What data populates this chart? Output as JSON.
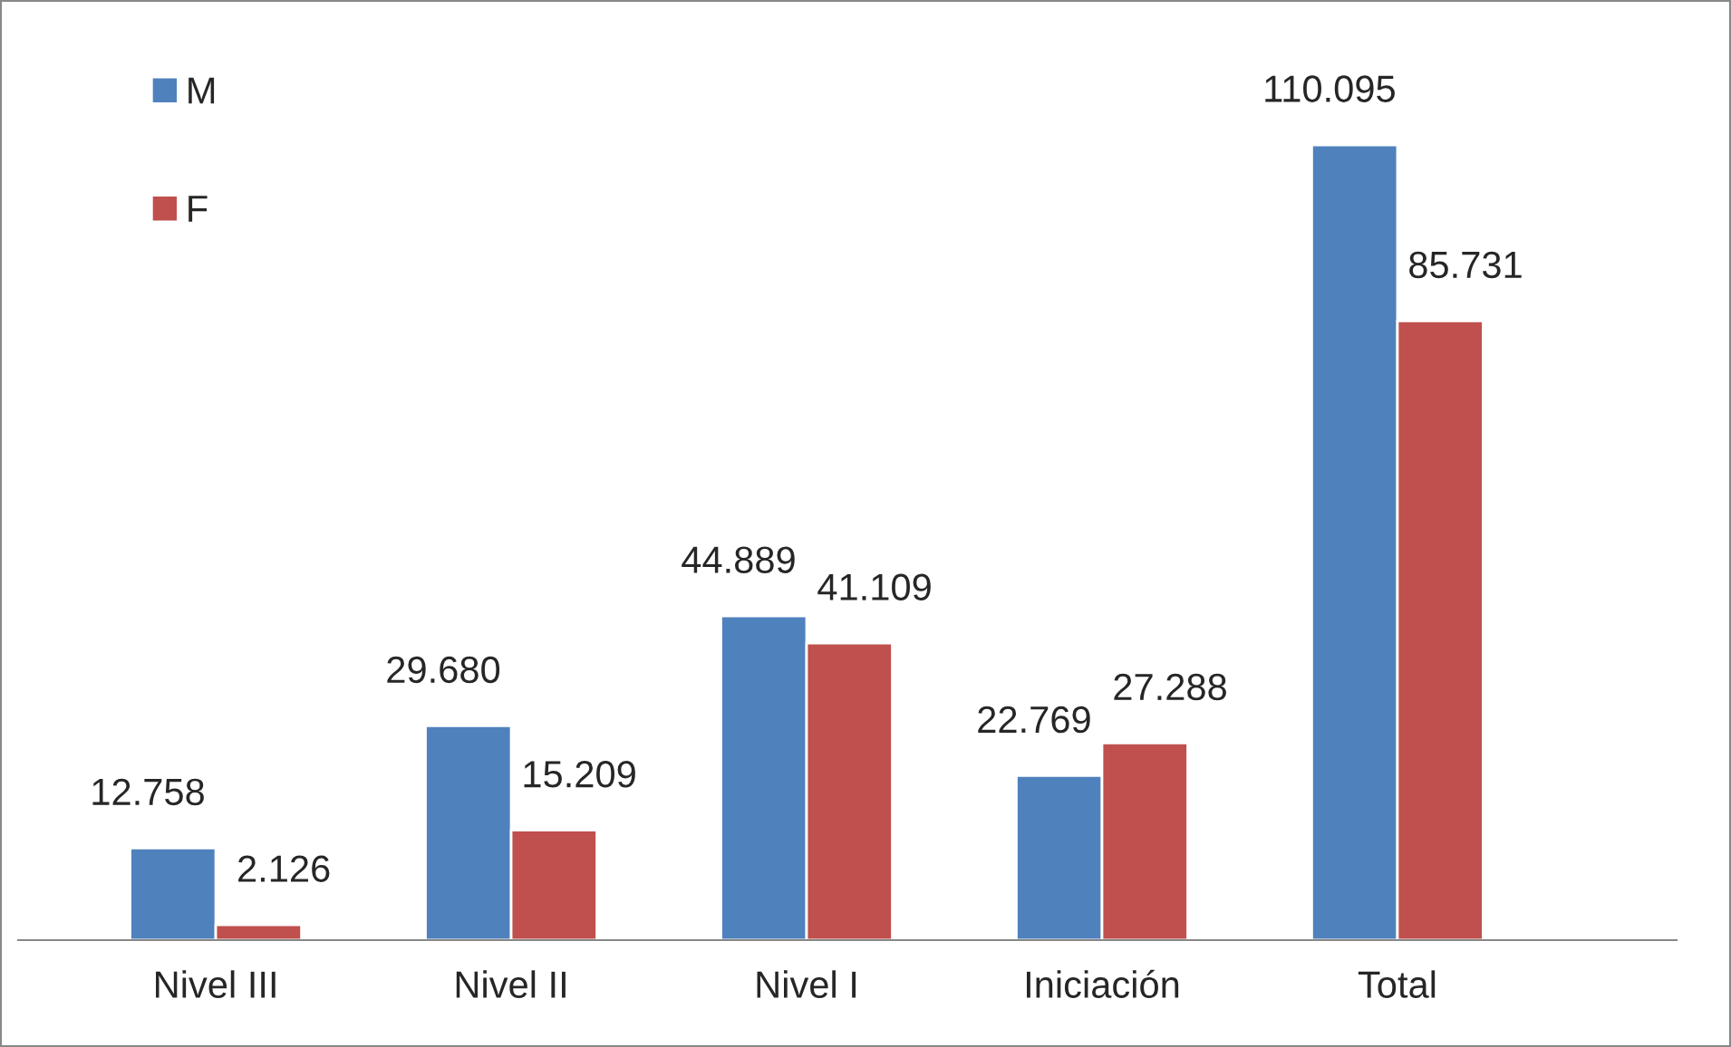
{
  "chart_data": {
    "type": "bar",
    "categories": [
      "Nivel III",
      "Nivel II",
      "Nivel I",
      "Iniciación",
      "Total"
    ],
    "series": [
      {
        "name": "M",
        "color": "#4f81bd",
        "values": [
          12758,
          29680,
          44889,
          22769,
          110095
        ],
        "value_labels": [
          "12.758",
          "29.680",
          "44.889",
          "22.769",
          "110.095"
        ]
      },
      {
        "name": "F",
        "color": "#c0504d",
        "values": [
          2126,
          15209,
          41109,
          27288,
          85731
        ],
        "value_labels": [
          "2.126",
          "15.209",
          "41.109",
          "27.288",
          "85.731"
        ]
      }
    ],
    "legend": "top left",
    "grid": false
  }
}
